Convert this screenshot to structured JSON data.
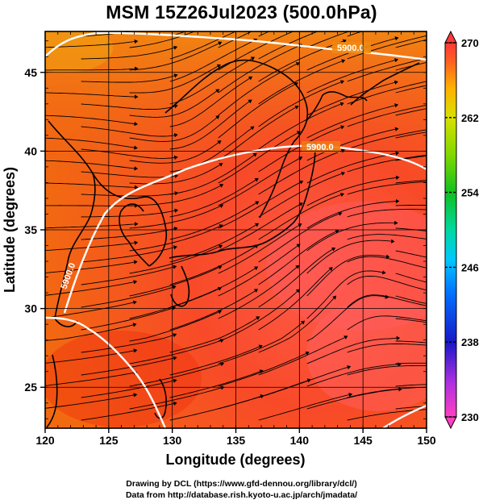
{
  "title": "MSM 15Z26Jul2023 (500.0hPa)",
  "footer_line1": "Drawing by DCL (https://www.gfd-dennou.org/library/dcl/)",
  "footer_line2": "Data from http://database.rish.kyoto-u.ac.jp/arch/jmadata/",
  "map": {
    "xlabel": "Longitude (degrees)",
    "ylabel": "Latitude  (degrees)",
    "lon_range": [
      120,
      150
    ],
    "lat_range": [
      22.4,
      47.6
    ],
    "lon_ticks": [
      120,
      125,
      130,
      135,
      140,
      145,
      150
    ],
    "lat_ticks": [
      25,
      30,
      35,
      40,
      45
    ],
    "field": "temperature shading with wind streamlines",
    "contour_labels": [
      "5900.0",
      "5900.0",
      "5900.0"
    ]
  },
  "colorbar": {
    "min": 230,
    "max": 270,
    "tick_labels": [
      "270",
      "262",
      "254",
      "246",
      "238",
      "230"
    ],
    "colors": [
      "#ff50c8",
      "#b040e0",
      "#3030ff",
      "#00a0ff",
      "#00d8c0",
      "#00cc40",
      "#60e000",
      "#d0f000",
      "#ffd000",
      "#ff9000",
      "#ff5000",
      "#ff3030"
    ]
  }
}
